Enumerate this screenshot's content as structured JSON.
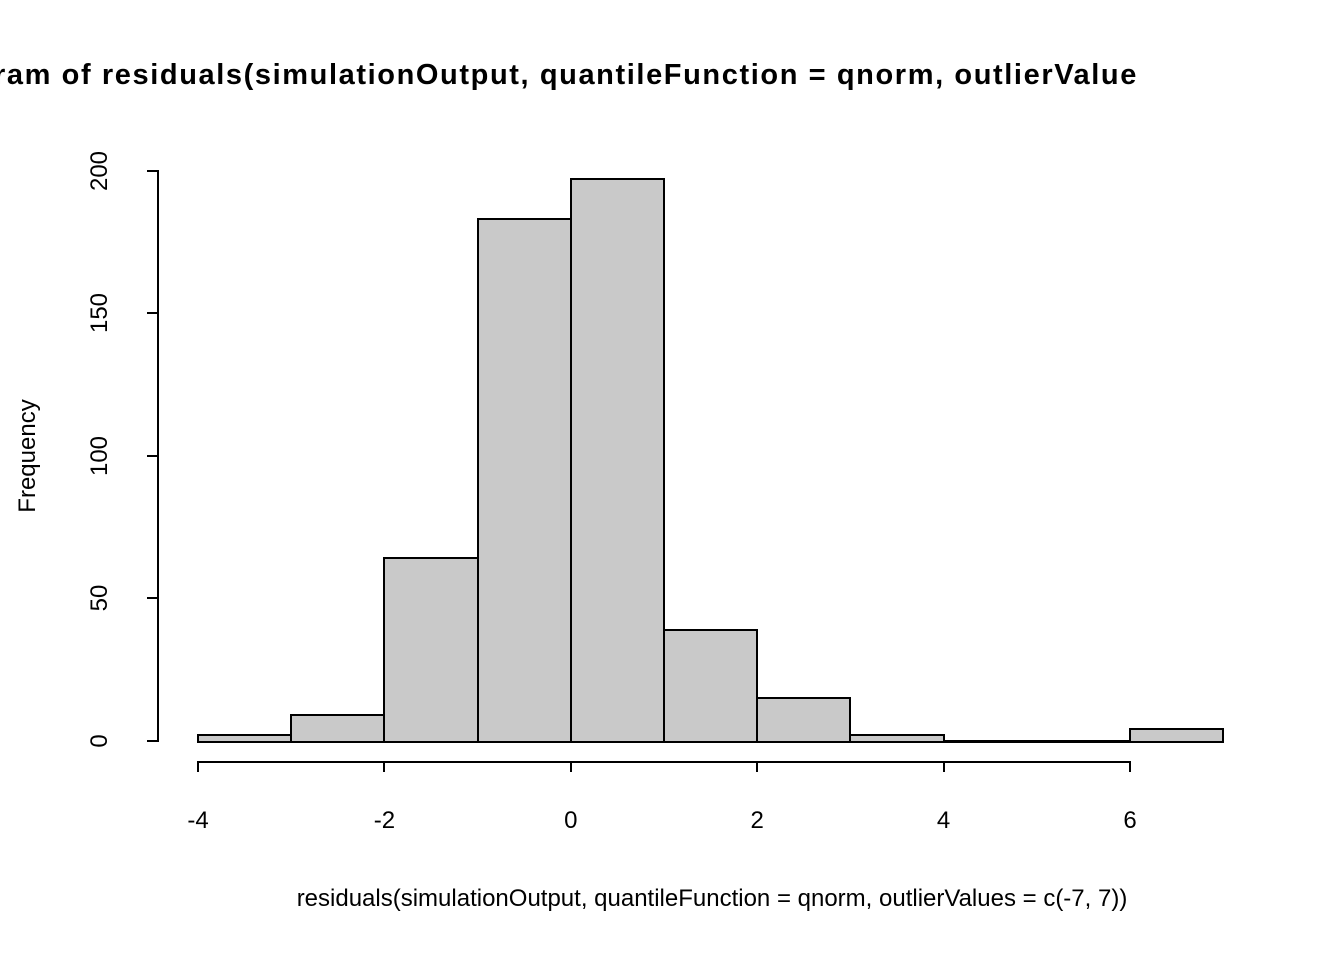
{
  "figure": {
    "title": "ram of residuals(simulationOutput, quantileFunction = qnorm, outlierValue",
    "x_axis_label": "residuals(simulationOutput, quantileFunction = qnorm, outlierValues = c(-7, 7))",
    "y_axis_label": "Frequency"
  },
  "chart_data": {
    "type": "bar",
    "subtype": "histogram",
    "title": "ram of residuals(simulationOutput, quantileFunction = qnorm, outlierValue",
    "xlabel": "residuals(simulationOutput, quantileFunction = qnorm, outlierValues = c(-7, 7))",
    "ylabel": "Frequency",
    "bin_edges": [
      -4,
      -3,
      -2,
      -1,
      0,
      1,
      2,
      3,
      4,
      5,
      6,
      7
    ],
    "counts": [
      2,
      9,
      64,
      183,
      197,
      39,
      15,
      2,
      0,
      0,
      4
    ],
    "x_ticks": [
      "-4",
      "-2",
      "0",
      "2",
      "4",
      "6"
    ],
    "x_tick_values": [
      -4,
      -2,
      0,
      2,
      4,
      6
    ],
    "y_ticks": [
      "0",
      "50",
      "100",
      "150",
      "200"
    ],
    "y_tick_values": [
      0,
      50,
      100,
      150,
      200
    ],
    "xlim": [
      -4,
      7
    ],
    "ylim": [
      0,
      200
    ],
    "grid": false,
    "legend": false,
    "bar_fill": "#c9c9c9",
    "bar_stroke": "#000000",
    "text_color": "#000000",
    "background": "#ffffff"
  }
}
